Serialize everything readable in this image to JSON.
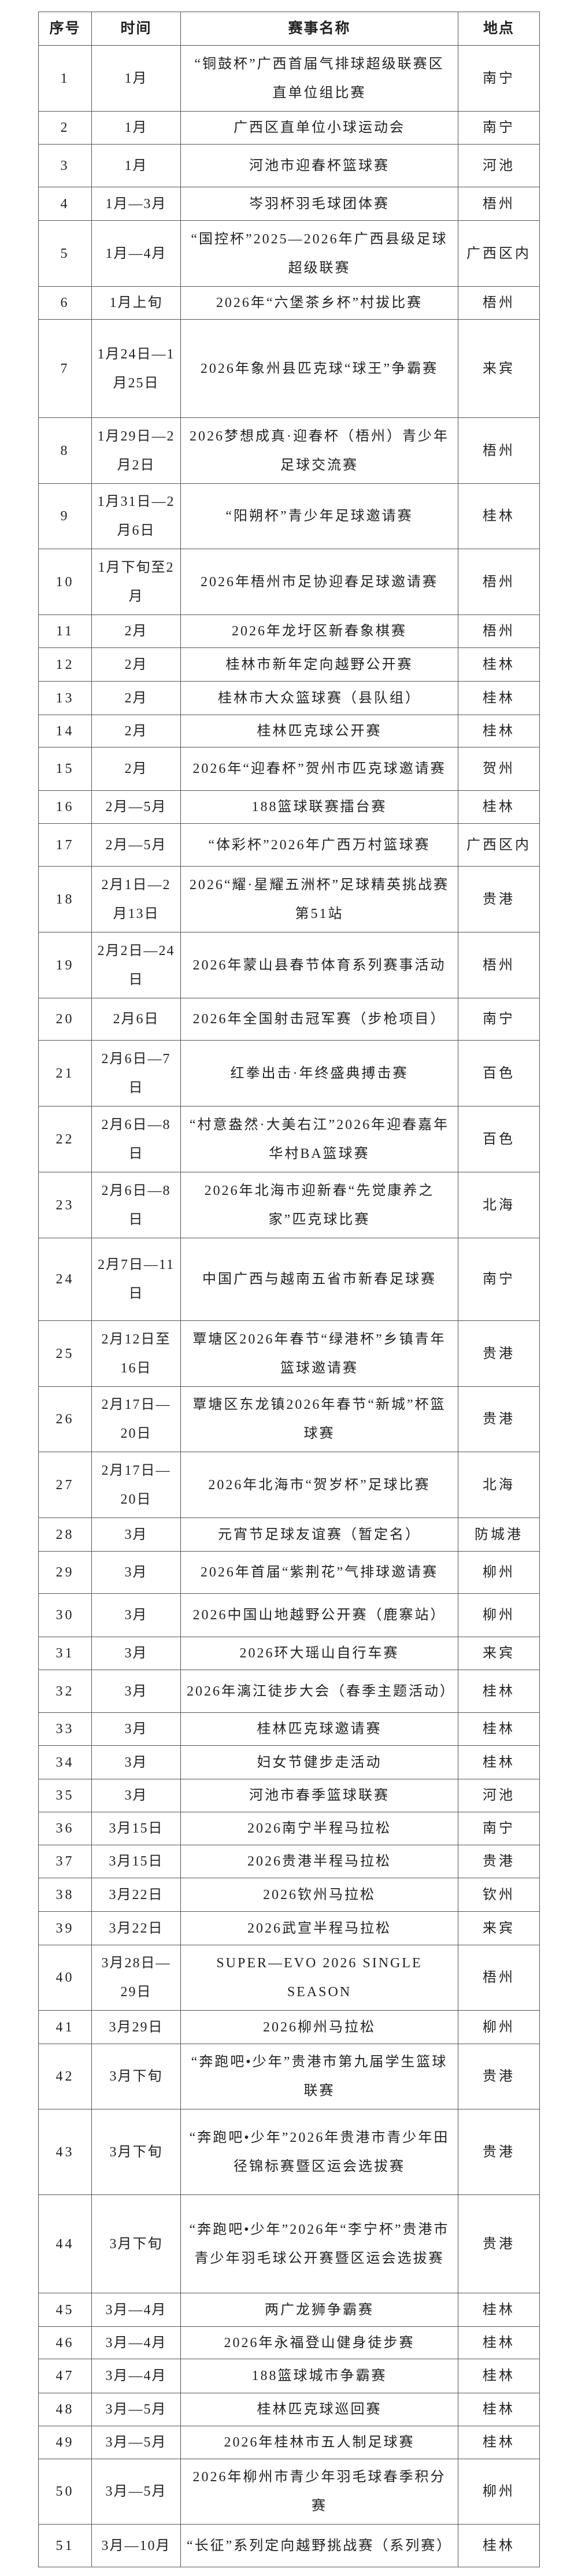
{
  "header": {
    "no": "序号",
    "time": "时间",
    "name": "赛事名称",
    "place": "地点"
  },
  "rows": [
    {
      "no": "1",
      "time": "1月",
      "name": "“铜鼓杯”广西首届气排球超级联赛区直单位组比赛",
      "place": "南宁"
    },
    {
      "no": "2",
      "time": "1月",
      "name": "广西区直单位小球运动会",
      "place": "南宁"
    },
    {
      "no": "3",
      "time": "1月",
      "name": "河池市迎春杯篮球赛",
      "place": "河池"
    },
    {
      "no": "4",
      "time": "1月—3月",
      "name": "岑羽杯羽毛球团体赛",
      "place": "梧州"
    },
    {
      "no": "5",
      "time": "1月—4月",
      "name": "“国控杯”2025—2026年广西县级足球超级联赛",
      "place": "广西区内"
    },
    {
      "no": "6",
      "time": "1月上旬",
      "name": "2026年“六堡茶乡杯”村拔比赛",
      "place": "梧州"
    },
    {
      "no": "7",
      "time": "1月24日—1月25日",
      "name": "2026年象州县匹克球“球王”争霸赛",
      "place": "来宾"
    },
    {
      "no": "8",
      "time": "1月29日—2月2日",
      "name": "2026梦想成真·迎春杯（梧州）青少年足球交流赛",
      "place": "梧州"
    },
    {
      "no": "9",
      "time": "1月31日—2月6日",
      "name": "“阳朔杯”青少年足球邀请赛",
      "place": "桂林"
    },
    {
      "no": "10",
      "time": "1月下旬至2月",
      "name": "2026年梧州市足协迎春足球邀请赛",
      "place": "梧州"
    },
    {
      "no": "11",
      "time": "2月",
      "name": "2026年龙圩区新春象棋赛",
      "place": "梧州"
    },
    {
      "no": "12",
      "time": "2月",
      "name": "桂林市新年定向越野公开赛",
      "place": "桂林"
    },
    {
      "no": "13",
      "time": "2月",
      "name": "桂林市大众篮球赛（县队组）",
      "place": "桂林"
    },
    {
      "no": "14",
      "time": "2月",
      "name": "桂林匹克球公开赛",
      "place": "桂林"
    },
    {
      "no": "15",
      "time": "2月",
      "name": "2026年“迎春杯”贺州市匹克球邀请赛",
      "place": "贺州"
    },
    {
      "no": "16",
      "time": "2月—5月",
      "name": "188篮球联赛擂台赛",
      "place": "桂林"
    },
    {
      "no": "17",
      "time": "2月—5月",
      "name": "“体彩杯”2026年广西万村篮球赛",
      "place": "广西区内"
    },
    {
      "no": "18",
      "time": "2月1日—2月13日",
      "name": "2026“耀·星耀五洲杯”足球精英挑战赛第51站",
      "place": "贵港"
    },
    {
      "no": "19",
      "time": "2月2日—24日",
      "name": "2026年蒙山县春节体育系列赛事活动",
      "place": "梧州"
    },
    {
      "no": "20",
      "time": "2月6日",
      "name": "2026年全国射击冠军赛（步枪项目）",
      "place": "南宁"
    },
    {
      "no": "21",
      "time": "2月6日—7日",
      "name": "红拳出击·年终盛典搏击赛",
      "place": "百色"
    },
    {
      "no": "22",
      "time": "2月6日—8日",
      "name": "“村意盎然·大美右江”2026年迎春嘉年华村BA篮球赛",
      "place": "百色"
    },
    {
      "no": "23",
      "time": "2月6日—8日",
      "name": "2026年北海市迎新春“先觉康养之家”匹克球比赛",
      "place": "北海"
    },
    {
      "no": "24",
      "time": "2月7日—11日",
      "name": "中国广西与越南五省市新春足球赛",
      "place": "南宁"
    },
    {
      "no": "25",
      "time": "2月12日至16日",
      "name": "覃塘区2026年春节“绿港杯”乡镇青年篮球邀请赛",
      "place": "贵港"
    },
    {
      "no": "26",
      "time": "2月17日—20日",
      "name": "覃塘区东龙镇2026年春节“新城”杯篮球赛",
      "place": "贵港"
    },
    {
      "no": "27",
      "time": "2月17日—20日",
      "name": "2026年北海市“贺岁杯”足球比赛",
      "place": "北海"
    },
    {
      "no": "28",
      "time": "3月",
      "name": "元宵节足球友谊赛（暂定名）",
      "place": "防城港"
    },
    {
      "no": "29",
      "time": "3月",
      "name": "2026年首届“紫荆花”气排球邀请赛",
      "place": "柳州"
    },
    {
      "no": "30",
      "time": "3月",
      "name": "2026中国山地越野公开赛（鹿寨站）",
      "place": "柳州"
    },
    {
      "no": "31",
      "time": "3月",
      "name": "2026环大瑶山自行车赛",
      "place": "来宾"
    },
    {
      "no": "32",
      "time": "3月",
      "name": "2026年漓江徒步大会（春季主题活动）",
      "place": "桂林"
    },
    {
      "no": "33",
      "time": "3月",
      "name": "桂林匹克球邀请赛",
      "place": "桂林"
    },
    {
      "no": "34",
      "time": "3月",
      "name": "妇女节健步走活动",
      "place": "桂林"
    },
    {
      "no": "35",
      "time": "3月",
      "name": "河池市春季篮球联赛",
      "place": "河池"
    },
    {
      "no": "36",
      "time": "3月15日",
      "name": "2026南宁半程马拉松",
      "place": "南宁"
    },
    {
      "no": "37",
      "time": "3月15日",
      "name": "2026贵港半程马拉松",
      "place": "贵港"
    },
    {
      "no": "38",
      "time": "3月22日",
      "name": "2026钦州马拉松",
      "place": "钦州"
    },
    {
      "no": "39",
      "time": "3月22日",
      "name": "2026武宣半程马拉松",
      "place": "来宾"
    },
    {
      "no": "40",
      "time": "3月28日—29日",
      "name": "SUPER—EVO 2026 SINGLE SEASON",
      "place": "梧州"
    },
    {
      "no": "41",
      "time": "3月29日",
      "name": "2026柳州马拉松",
      "place": "柳州"
    },
    {
      "no": "42",
      "time": "3月下旬",
      "name": "“奔跑吧•少年”贵港市第九届学生篮球联赛",
      "place": "贵港"
    },
    {
      "no": "43",
      "time": "3月下旬",
      "name": "“奔跑吧•少年”2026年贵港市青少年田径锦标赛暨区运会选拔赛",
      "place": "贵港"
    },
    {
      "no": "44",
      "time": "3月下旬",
      "name": "“奔跑吧•少年”2026年“李宁杯”贵港市青少年羽毛球公开赛暨区运会选拔赛",
      "place": "贵港"
    },
    {
      "no": "45",
      "time": "3月—4月",
      "name": "两广龙狮争霸赛",
      "place": "桂林"
    },
    {
      "no": "46",
      "time": "3月—4月",
      "name": "2026年永福登山健身徒步赛",
      "place": "桂林"
    },
    {
      "no": "47",
      "time": "3月—4月",
      "name": "188篮球城市争霸赛",
      "place": "桂林"
    },
    {
      "no": "48",
      "time": "3月—5月",
      "name": "桂林匹克球巡回赛",
      "place": "桂林"
    },
    {
      "no": "49",
      "time": "3月—5月",
      "name": "2026年桂林市五人制足球赛",
      "place": "桂林"
    },
    {
      "no": "50",
      "time": "3月—5月",
      "name": "2026年柳州市青少年羽毛球春季积分赛",
      "place": "柳州"
    },
    {
      "no": "51",
      "time": "3月—10月",
      "name": "“长征”系列定向越野挑战赛（系列赛）",
      "place": "桂林"
    }
  ]
}
